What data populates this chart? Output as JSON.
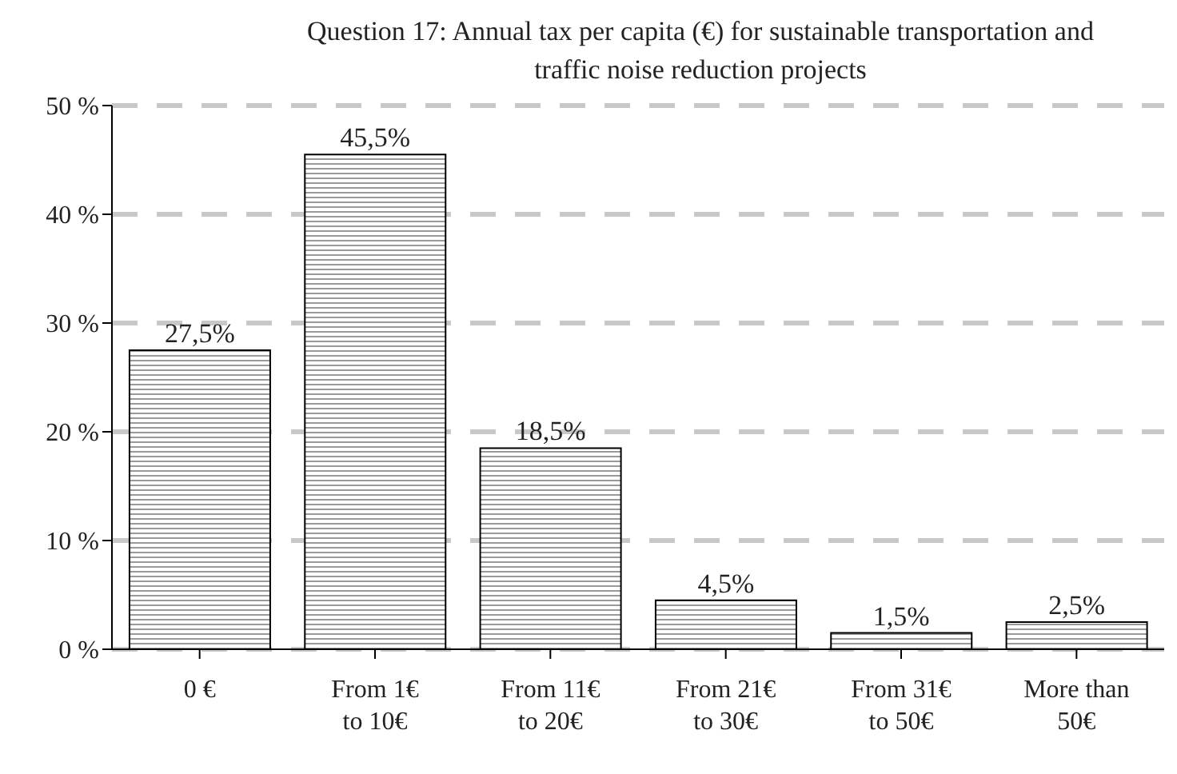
{
  "chart_data": {
    "type": "bar",
    "title": "Question 17: Annual tax per capita (€) for sustainable transportation and traffic noise reduction  projects",
    "categories": [
      "0 €",
      "From 1€ to 10€",
      "From 11€ to 20€",
      "From 21€ to 30€",
      "From 31€ to 50€",
      "More than 50€"
    ],
    "values": [
      27.5,
      45.5,
      18.5,
      4.5,
      1.5,
      2.5
    ],
    "value_labels": [
      "27,5%",
      "45,5%",
      "18,5%",
      "4,5%",
      "1,5%",
      "2,5%"
    ],
    "color": "#000000",
    "ylim": [
      0,
      50
    ],
    "yticks": [
      {
        "value": 0,
        "label": "0 %"
      },
      {
        "value": 10,
        "label": "10 %"
      },
      {
        "value": 20,
        "label": "20 %"
      },
      {
        "value": 30,
        "label": "30 %"
      },
      {
        "value": 40,
        "label": "40 %"
      },
      {
        "value": 50,
        "label": "50 %"
      }
    ],
    "grid": "y"
  }
}
